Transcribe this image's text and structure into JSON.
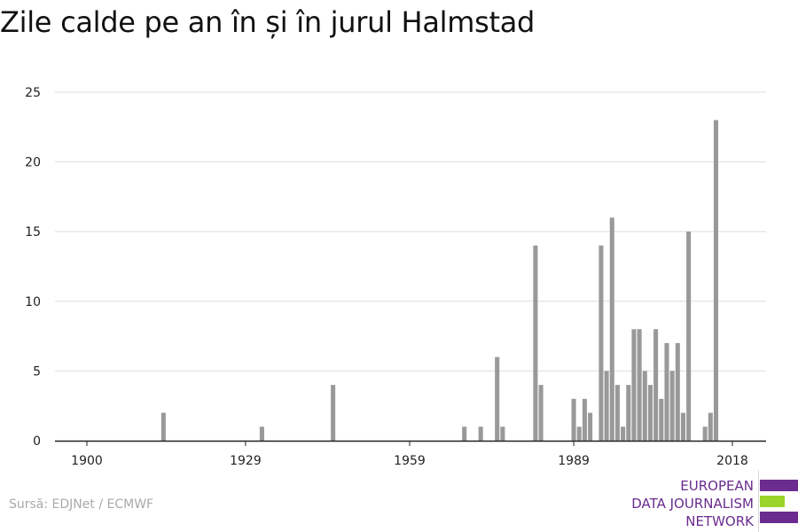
{
  "title": "Zile calde pe an în și în jurul Halmstad",
  "source": "Sursă: EDJNet / ECMWF",
  "logo": {
    "lines": [
      "EUROPEAN",
      "DATA JOURNALISM",
      "NETWORK"
    ],
    "colors": [
      "#6a2c8e",
      "#9bd42a",
      "#6a2c8e"
    ]
  },
  "chart_data": {
    "type": "bar",
    "title": "",
    "xlabel": "",
    "ylabel": "",
    "x_ticks": [
      1900,
      1929,
      1959,
      1989,
      2018
    ],
    "y_ticks": [
      0,
      5,
      10,
      15,
      20,
      25
    ],
    "xlim": [
      1900,
      2018
    ],
    "ylim": [
      0,
      25
    ],
    "grid": true,
    "bar_color": "#999999",
    "series": [
      {
        "x": [
          1914,
          1932,
          1945,
          1969,
          1972,
          1975,
          1976,
          1982,
          1983,
          1989,
          1990,
          1991,
          1992,
          1994,
          1995,
          1996,
          1997,
          1998,
          1999,
          2000,
          2001,
          2002,
          2003,
          2004,
          2005,
          2006,
          2007,
          2008,
          2009,
          2010,
          2013,
          2014,
          2015,
          2016,
          2018
        ],
        "y": [
          2,
          1,
          4,
          1,
          1,
          6,
          1,
          14,
          4,
          3,
          1,
          3,
          2,
          14,
          5,
          16,
          4,
          1,
          4,
          8,
          8,
          5,
          4,
          8,
          3,
          7,
          5,
          7,
          2,
          15,
          1,
          2,
          23,
          0,
          0
        ]
      }
    ]
  }
}
